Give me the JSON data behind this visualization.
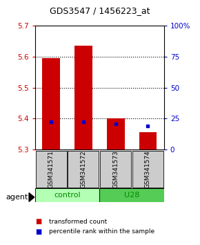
{
  "title": "GDS3547 / 1456223_at",
  "samples": [
    "GSM341571",
    "GSM341572",
    "GSM341573",
    "GSM341574"
  ],
  "red_values": [
    5.595,
    5.635,
    5.4,
    5.355
  ],
  "blue_values": [
    5.39,
    5.39,
    5.382,
    5.376
  ],
  "y_min": 5.3,
  "y_max": 5.7,
  "y_ticks_left": [
    5.3,
    5.4,
    5.5,
    5.6,
    5.7
  ],
  "y_ticks_right": [
    0,
    25,
    50,
    75,
    100
  ],
  "bar_base": 5.3,
  "red_color": "#cc0000",
  "blue_color": "#0000cc",
  "control_color": "#b3ffb3",
  "u28_color": "#55cc55",
  "group_label_color": "#008800",
  "left_axis_color": "#cc0000",
  "right_axis_color": "#0000cc",
  "legend_red": "transformed count",
  "legend_blue": "percentile rank within the sample",
  "agent_label": "agent",
  "bar_width": 0.55,
  "grid_lines": [
    5.4,
    5.5,
    5.6
  ]
}
